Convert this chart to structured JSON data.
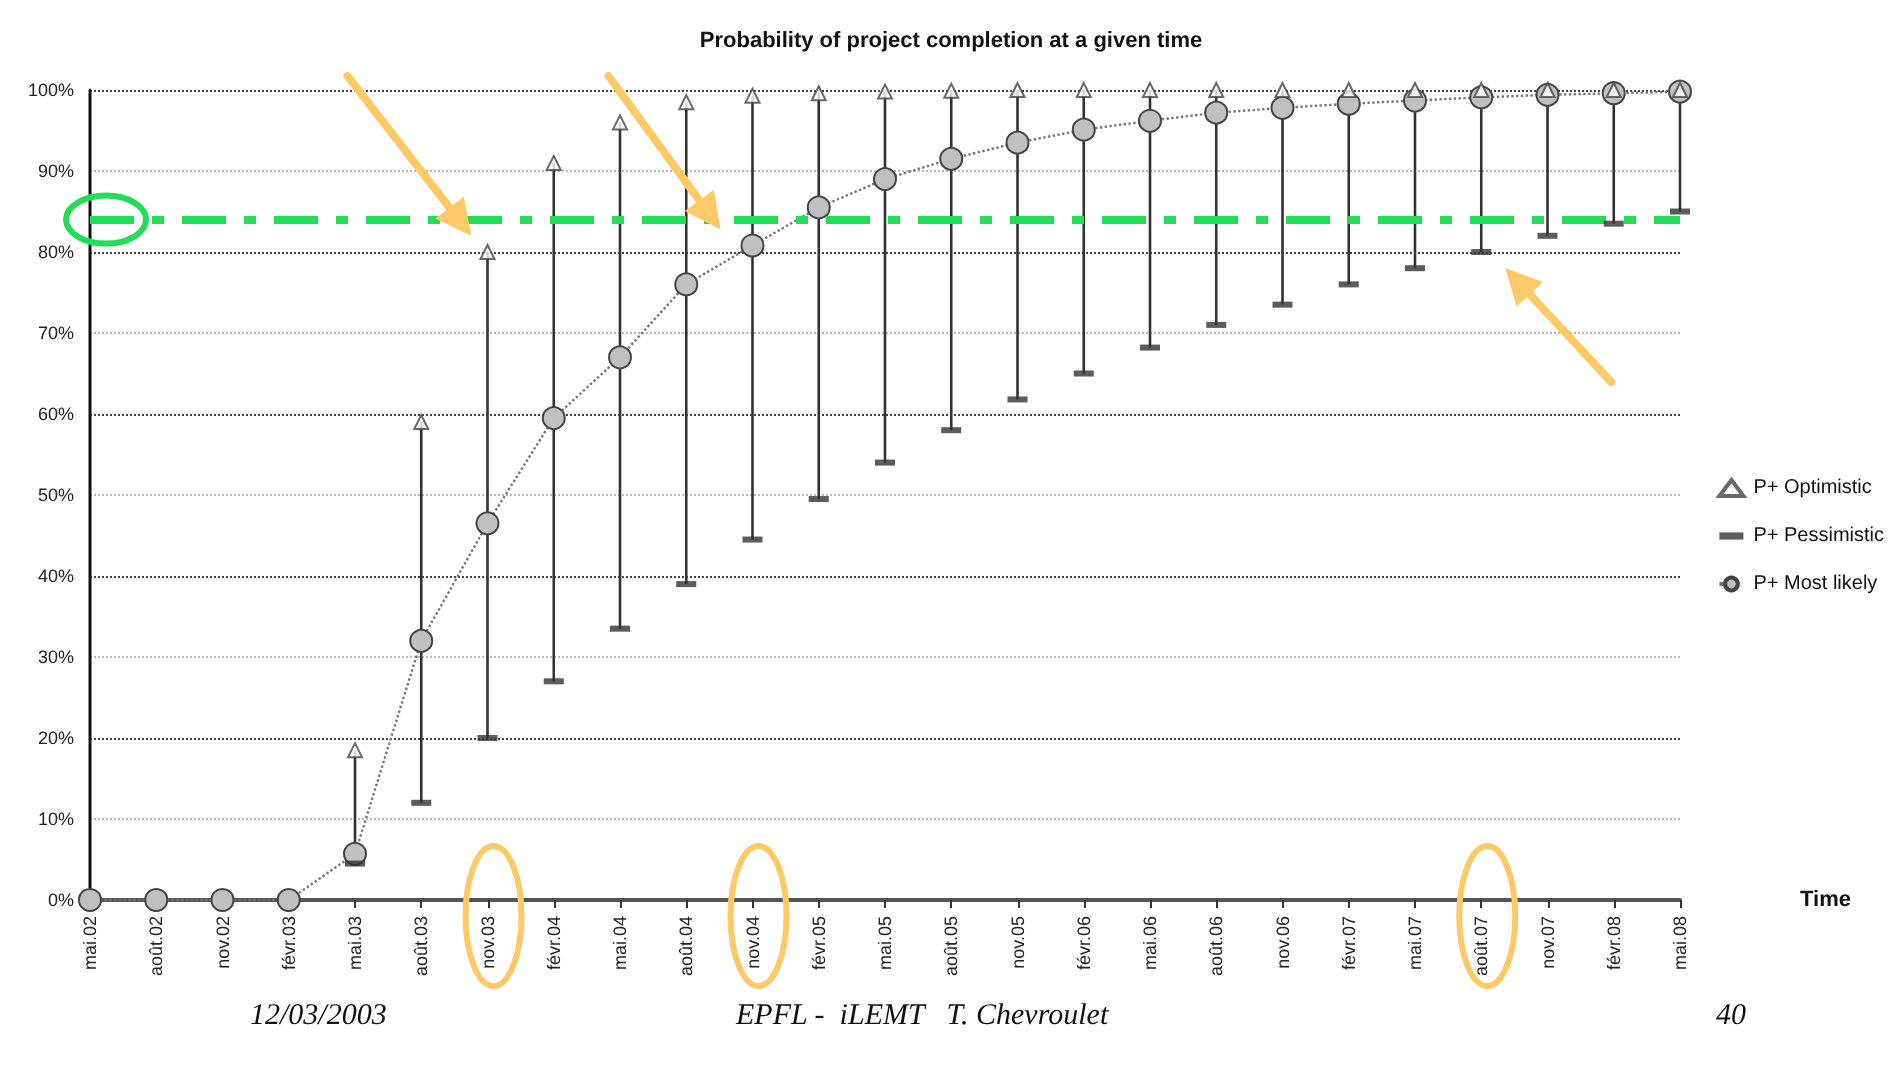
{
  "chart_data": {
    "type": "scatter",
    "title": "Probability of project completion at a given time",
    "xlabel": "Time",
    "categories": [
      "mai.02",
      "août.02",
      "nov.02",
      "févr.03",
      "mai.03",
      "août.03",
      "nov.03",
      "févr.04",
      "mai.04",
      "août.04",
      "nov.04",
      "févr.05",
      "mai.05",
      "août.05",
      "nov.05",
      "févr.06",
      "mai.06",
      "août.06",
      "nov.06",
      "févr.07",
      "mai.07",
      "août.07",
      "nov.07",
      "févr.08",
      "mai.08"
    ],
    "series": [
      {
        "name": "P+ Optimistic",
        "marker": "triangle",
        "color": "#ffffff",
        "values": [
          null,
          null,
          null,
          null,
          18.5,
          59,
          80,
          91,
          96,
          98.5,
          99.3,
          99.6,
          99.8,
          99.9,
          100,
          100,
          100,
          100,
          100,
          100,
          100,
          100,
          100,
          100,
          100
        ]
      },
      {
        "name": "P+ Pessimistic",
        "marker": "square",
        "color": "#333333",
        "values": [
          null,
          null,
          null,
          null,
          4.5,
          12,
          20,
          27,
          33.5,
          39,
          44.5,
          49.5,
          54,
          58,
          61.8,
          65,
          68.2,
          71,
          73.5,
          76,
          78,
          80,
          82,
          83.5,
          85
        ]
      },
      {
        "name": "P+ Most likely",
        "type": "line",
        "marker": "circle",
        "line_style": "dotted",
        "color": "#c0c0c0",
        "values": [
          0,
          0,
          0,
          0,
          5.7,
          32,
          46.5,
          59.5,
          67,
          76,
          80.8,
          85.5,
          89,
          91.5,
          93.5,
          95.1,
          96.2,
          97.2,
          97.8,
          98.3,
          98.7,
          99.1,
          99.4,
          99.6,
          99.8
        ]
      }
    ],
    "ylim": [
      0,
      100
    ],
    "yticks": [
      {
        "value": 0,
        "label": "0%"
      },
      {
        "value": 10,
        "label": "10%"
      },
      {
        "value": 20,
        "label": "20%"
      },
      {
        "value": 30,
        "label": "30%"
      },
      {
        "value": 40,
        "label": "40%"
      },
      {
        "value": 50,
        "label": "50%"
      },
      {
        "value": 60,
        "label": "60%"
      },
      {
        "value": 70,
        "label": "70%"
      },
      {
        "value": 80,
        "label": "80%"
      },
      {
        "value": 90,
        "label": "90%"
      },
      {
        "value": 100,
        "label": "100%"
      }
    ],
    "ref_lines": [
      {
        "axis": "y",
        "value": 84,
        "color": "#22dd55",
        "line_style": "dashed"
      }
    ],
    "grid": "y",
    "legend": "right",
    "annotations": [
      "12/03/2003",
      "EPFL -  iLEMT   T. Chevroulet",
      "40"
    ]
  }
}
